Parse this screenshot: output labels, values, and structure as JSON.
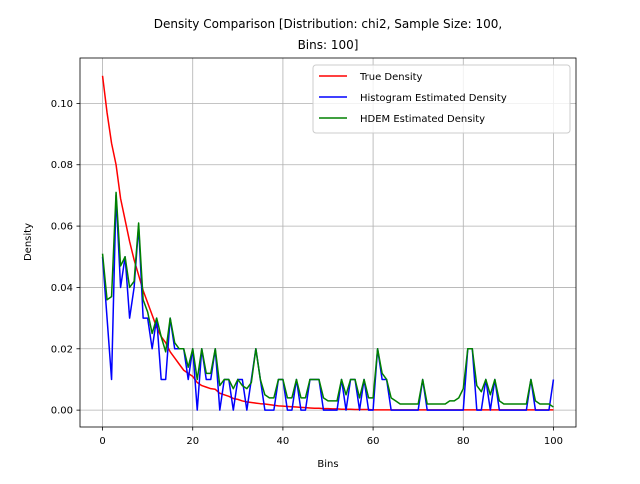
{
  "chart_data": {
    "type": "line",
    "title_lines": [
      "Density Comparison [Distribution: chi2, Sample Size: 100,",
      "Bins: 100]"
    ],
    "xlabel": "Bins",
    "ylabel": "Density",
    "xlim": [
      -5,
      105
    ],
    "ylim": [
      -0.0055,
      0.1148
    ],
    "xticks": [
      0,
      20,
      40,
      60,
      80,
      100
    ],
    "xtick_labels": [
      "0",
      "20",
      "40",
      "60",
      "80",
      "100"
    ],
    "yticks": [
      0,
      0.02,
      0.04,
      0.06,
      0.08,
      0.1
    ],
    "ytick_labels": [
      "0.00",
      "0.02",
      "0.04",
      "0.06",
      "0.08",
      "0.10"
    ],
    "grid": true,
    "legend_position": "top-right",
    "x": [
      0,
      1,
      2,
      3,
      4,
      5,
      6,
      7,
      8,
      9,
      10,
      11,
      12,
      13,
      14,
      15,
      16,
      17,
      18,
      19,
      20,
      21,
      22,
      23,
      24,
      25,
      26,
      27,
      28,
      29,
      30,
      31,
      32,
      33,
      34,
      35,
      36,
      37,
      38,
      39,
      40,
      41,
      42,
      43,
      44,
      45,
      46,
      47,
      48,
      49,
      50,
      51,
      52,
      53,
      54,
      55,
      56,
      57,
      58,
      59,
      60,
      61,
      62,
      63,
      64,
      65,
      66,
      67,
      68,
      69,
      70,
      71,
      72,
      73,
      74,
      75,
      76,
      77,
      78,
      79,
      80,
      81,
      82,
      83,
      84,
      85,
      86,
      87,
      88,
      89,
      90,
      91,
      92,
      93,
      94,
      95,
      96,
      97,
      98,
      99,
      100
    ],
    "series": [
      {
        "name": "True Density",
        "color": "#ff0000",
        "values": [
          0.109,
          0.097,
          0.087,
          0.08,
          0.069,
          0.062,
          0.055,
          0.049,
          0.044,
          0.039,
          0.035,
          0.031,
          0.027,
          0.024,
          0.022,
          0.019,
          0.017,
          0.015,
          0.013,
          0.012,
          0.011,
          0.009,
          0.008,
          0.0075,
          0.007,
          0.0068,
          0.0055,
          0.005,
          0.0045,
          0.0038,
          0.0035,
          0.003,
          0.0027,
          0.0025,
          0.0023,
          0.0021,
          0.002,
          0.0018,
          0.0016,
          0.0014,
          0.0013,
          0.0012,
          0.0011,
          0.001,
          0.0009,
          0.0008,
          0.0007,
          0.0006,
          0.0006,
          0.0005,
          0.0005,
          0.0004,
          0.0004,
          0.0003,
          0.0003,
          0.0003,
          0.0002,
          0.0002,
          0.0002,
          0.0002,
          0.0001,
          0.0001,
          0.0001,
          0.0001,
          0.0001,
          0.0001,
          0.0001,
          0.0001,
          0.0001,
          0.0001,
          0.0001,
          0.0001,
          0.0001,
          0.0001,
          0.0001,
          0.0001,
          0.0001,
          0.0001,
          0.0001,
          0.0001,
          0.0001,
          0.0001,
          0.0001,
          0.0001,
          0.0001,
          0.0001,
          0.0001,
          0.0001,
          0.0001,
          0.0001,
          0.0001,
          0.0001,
          0.0001,
          0.0001,
          0.0001,
          0.0001,
          0.0001,
          0.0001,
          0.0001,
          0.0001,
          0.0001
        ]
      },
      {
        "name": "Histogram Estimated Density",
        "color": "#0000ff",
        "values": [
          0.05,
          0.03,
          0.01,
          0.07,
          0.04,
          0.05,
          0.03,
          0.04,
          0.06,
          0.03,
          0.03,
          0.02,
          0.03,
          0.01,
          0.01,
          0.03,
          0.02,
          0.02,
          0.02,
          0.01,
          0.02,
          0.0,
          0.02,
          0.01,
          0.01,
          0.02,
          0.0,
          0.01,
          0.01,
          0.0,
          0.01,
          0.01,
          0.0,
          0.01,
          0.02,
          0.01,
          0.0,
          0.0,
          0.0,
          0.01,
          0.01,
          0.0,
          0.0,
          0.01,
          0.0,
          0.0,
          0.01,
          0.01,
          0.01,
          0.0,
          0.0,
          0.0,
          0.0,
          0.01,
          0.0,
          0.01,
          0.01,
          0.0,
          0.01,
          0.0,
          0.0,
          0.02,
          0.01,
          0.01,
          0.0,
          0.0,
          0.0,
          0.0,
          0.0,
          0.0,
          0.0,
          0.01,
          0.0,
          0.0,
          0.0,
          0.0,
          0.0,
          0.0,
          0.0,
          0.0,
          0.0,
          0.02,
          0.02,
          0.0,
          0.0,
          0.01,
          0.0,
          0.01,
          0.0,
          0.0,
          0.0,
          0.0,
          0.0,
          0.0,
          0.0,
          0.01,
          0.0,
          0.0,
          0.0,
          0.0,
          0.01
        ]
      },
      {
        "name": "HDEM Estimated Density",
        "color": "#008000",
        "values": [
          0.051,
          0.036,
          0.037,
          0.071,
          0.047,
          0.05,
          0.04,
          0.042,
          0.061,
          0.036,
          0.032,
          0.025,
          0.03,
          0.024,
          0.019,
          0.03,
          0.022,
          0.02,
          0.02,
          0.014,
          0.02,
          0.01,
          0.02,
          0.012,
          0.012,
          0.02,
          0.008,
          0.01,
          0.01,
          0.007,
          0.01,
          0.008,
          0.007,
          0.009,
          0.02,
          0.01,
          0.005,
          0.004,
          0.004,
          0.01,
          0.01,
          0.004,
          0.004,
          0.01,
          0.004,
          0.004,
          0.01,
          0.01,
          0.01,
          0.004,
          0.003,
          0.003,
          0.003,
          0.01,
          0.005,
          0.01,
          0.01,
          0.004,
          0.01,
          0.004,
          0.004,
          0.02,
          0.012,
          0.01,
          0.004,
          0.003,
          0.002,
          0.002,
          0.002,
          0.002,
          0.002,
          0.01,
          0.002,
          0.002,
          0.002,
          0.002,
          0.002,
          0.003,
          0.003,
          0.004,
          0.007,
          0.02,
          0.02,
          0.008,
          0.006,
          0.01,
          0.005,
          0.01,
          0.003,
          0.002,
          0.002,
          0.002,
          0.002,
          0.002,
          0.002,
          0.01,
          0.003,
          0.002,
          0.002,
          0.002,
          0.001
        ]
      }
    ]
  }
}
